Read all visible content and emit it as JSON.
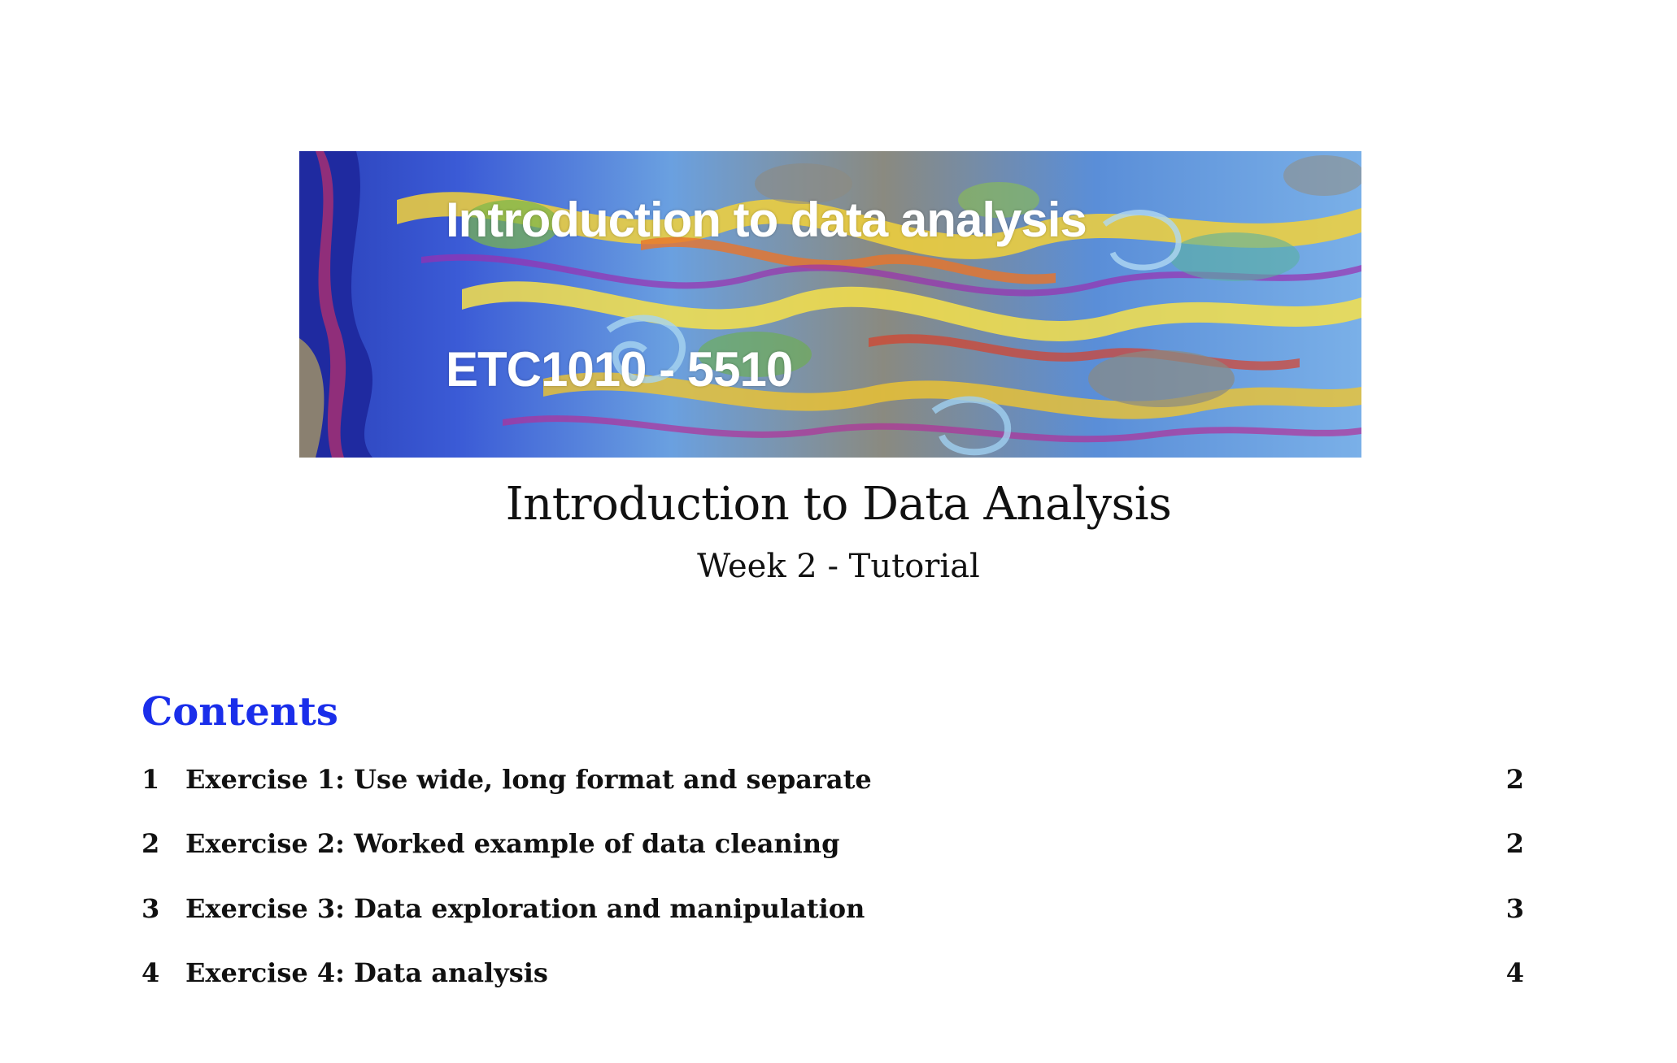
{
  "banner": {
    "title": "Introduction to data analysis",
    "subtitle": "ETC1010 - 5510"
  },
  "document": {
    "title": "Introduction to Data Analysis",
    "subtitle": "Week 2 - Tutorial"
  },
  "contents": {
    "heading": "Contents",
    "heading_color": "#1a2eea",
    "items": [
      {
        "number": "1",
        "label": "Exercise 1: Use wide, long format and separate",
        "page": "2"
      },
      {
        "number": "2",
        "label": "Exercise 2: Worked example of data cleaning",
        "page": "2"
      },
      {
        "number": "3",
        "label": "Exercise 3: Data exploration and manipulation",
        "page": "3"
      },
      {
        "number": "4",
        "label": "Exercise 4: Data analysis",
        "page": "4"
      }
    ]
  }
}
